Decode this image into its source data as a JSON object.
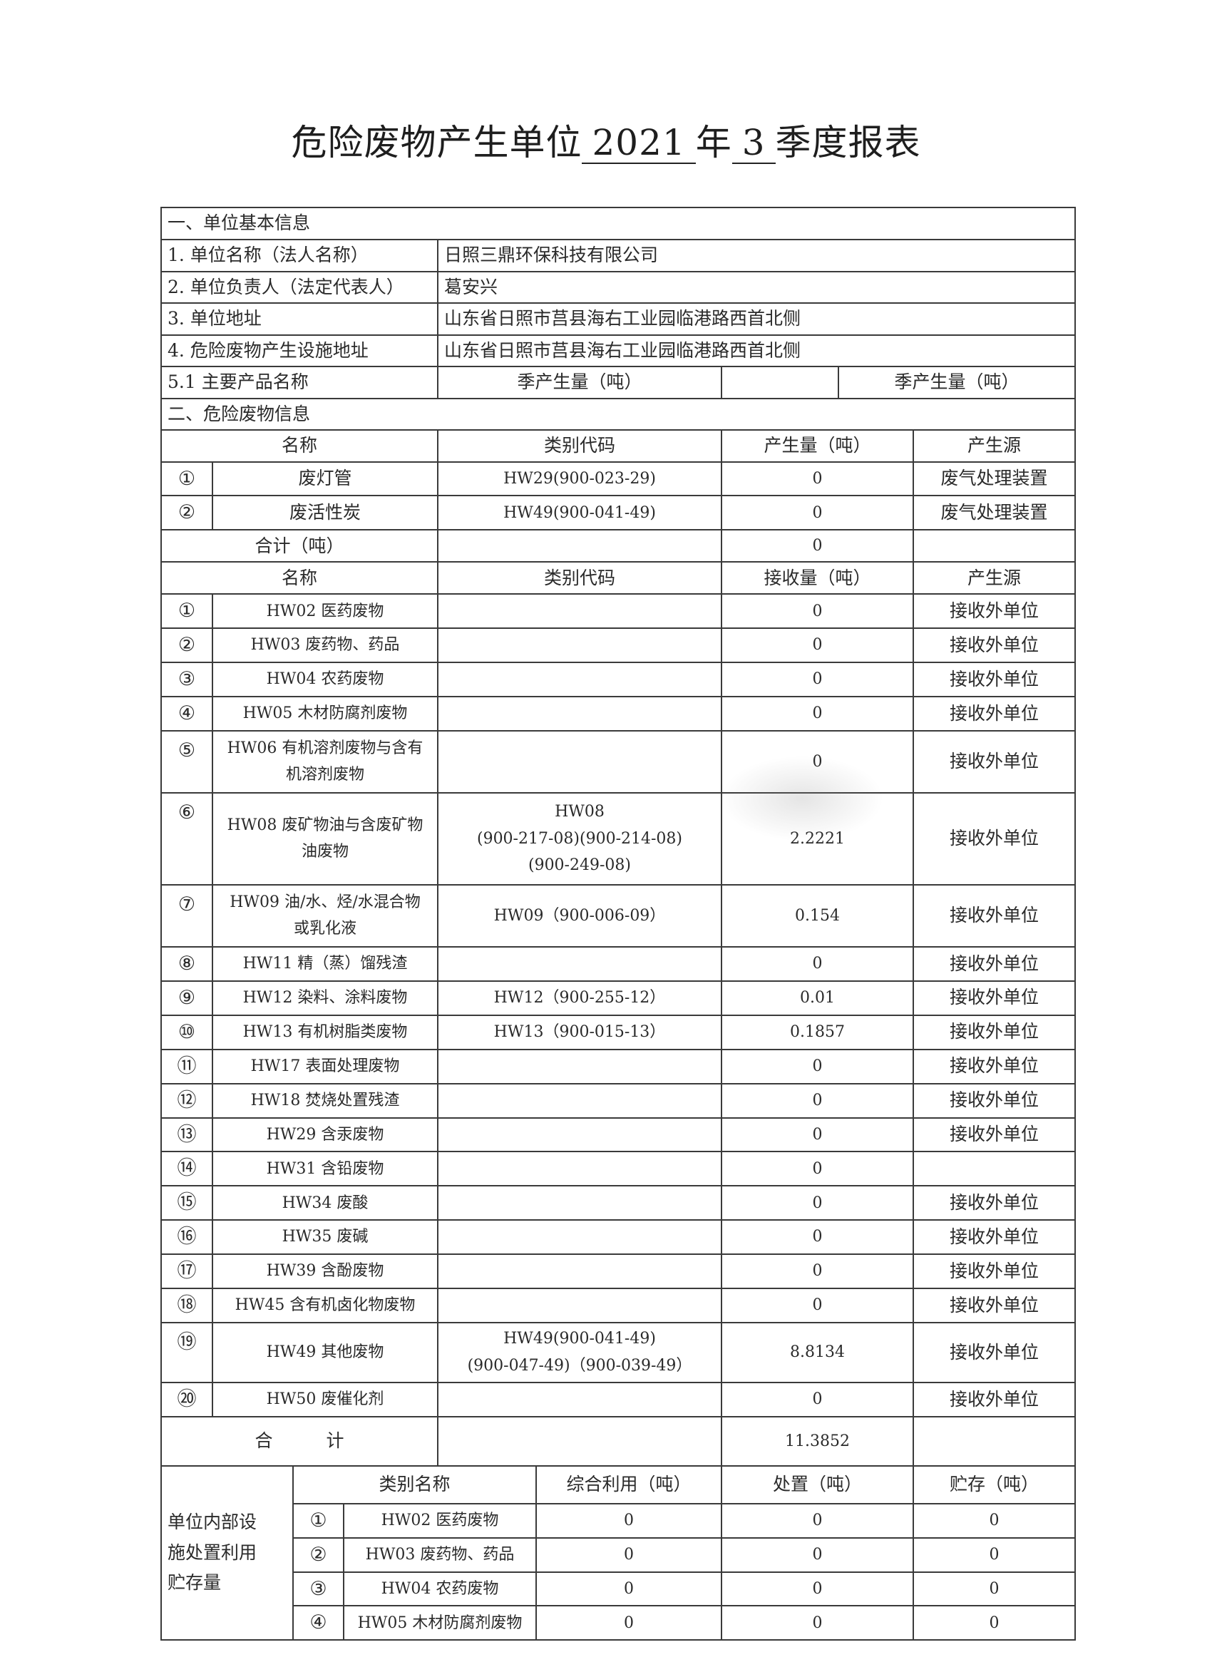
{
  "title": {
    "prefix": "危险废物产生单位",
    "year": "2021",
    "year_suffix": "年",
    "quarter": "3",
    "suffix": "季度报表"
  },
  "section1": {
    "heading": "一、单位基本信息",
    "fields": [
      {
        "label": "1. 单位名称（法人名称）",
        "value": "日照三鼎环保科技有限公司"
      },
      {
        "label": "2. 单位负责人（法定代表人）",
        "value": "葛安兴"
      },
      {
        "label": "3. 单位地址",
        "value": "山东省日照市莒县海右工业园临港路西首北侧"
      },
      {
        "label": "4. 危险废物产生设施地址",
        "value": "山东省日照市莒县海右工业园临港路西首北侧"
      }
    ],
    "product": {
      "label": "5.1 主要产品名称",
      "qty_label_1": "季产生量（吨）",
      "value_1": "",
      "qty_label_2": "季产生量（吨）"
    }
  },
  "section2": {
    "heading": "二、危险废物信息",
    "produced": {
      "headers": [
        "名称",
        "类别代码",
        "产生量（吨）",
        "产生源"
      ],
      "rows": [
        {
          "no": "①",
          "name": "废灯管",
          "code": "HW29(900-023-29)",
          "amount": "0",
          "source": "废气处理装置"
        },
        {
          "no": "②",
          "name": "废活性炭",
          "code": "HW49(900-041-49)",
          "amount": "0",
          "source": "废气处理装置"
        }
      ],
      "total_label": "合计（吨）",
      "total": "0"
    },
    "received": {
      "headers": [
        "名称",
        "类别代码",
        "接收量（吨）",
        "产生源"
      ],
      "rows": [
        {
          "no": "①",
          "name": "HW02 医药废物",
          "code": "",
          "amount": "0",
          "source": "接收外单位"
        },
        {
          "no": "②",
          "name": "HW03 废药物、药品",
          "code": "",
          "amount": "0",
          "source": "接收外单位"
        },
        {
          "no": "③",
          "name": "HW04 农药废物",
          "code": "",
          "amount": "0",
          "source": "接收外单位"
        },
        {
          "no": "④",
          "name": "HW05 木材防腐剂废物",
          "code": "",
          "amount": "0",
          "source": "接收外单位"
        },
        {
          "no": "⑤",
          "name": "HW06 有机溶剂废物与含有\n机溶剂废物",
          "code": "",
          "amount": "0",
          "source": "接收外单位"
        },
        {
          "no": "⑥",
          "name": "HW08 废矿物油与含废矿物\n油废物",
          "code": "HW08\n(900-217-08)(900-214-08)\n(900-249-08)",
          "amount": "2.2221",
          "source": "接收外单位"
        },
        {
          "no": "⑦",
          "name": "HW09 油/水、烃/水混合物\n或乳化液",
          "code": "HW09（900-006-09）",
          "amount": "0.154",
          "source": "接收外单位"
        },
        {
          "no": "⑧",
          "name": "HW11 精（蒸）馏残渣",
          "code": "",
          "amount": "0",
          "source": "接收外单位"
        },
        {
          "no": "⑨",
          "name": "HW12 染料、涂料废物",
          "code": "HW12（900-255-12）",
          "amount": "0.01",
          "source": "接收外单位"
        },
        {
          "no": "⑩",
          "name": "HW13 有机树脂类废物",
          "code": "HW13（900-015-13）",
          "amount": "0.1857",
          "source": "接收外单位"
        },
        {
          "no": "⑪",
          "name": "HW17 表面处理废物",
          "code": "",
          "amount": "0",
          "source": "接收外单位"
        },
        {
          "no": "⑫",
          "name": "HW18 焚烧处置残渣",
          "code": "",
          "amount": "0",
          "source": "接收外单位"
        },
        {
          "no": "⑬",
          "name": "HW29 含汞废物",
          "code": "",
          "amount": "0",
          "source": "接收外单位"
        },
        {
          "no": "⑭",
          "name": "HW31 含铅废物",
          "code": "",
          "amount": "0",
          "source": ""
        },
        {
          "no": "⑮",
          "name": "HW34 废酸",
          "code": "",
          "amount": "0",
          "source": "接收外单位"
        },
        {
          "no": "⑯",
          "name": "HW35 废碱",
          "code": "",
          "amount": "0",
          "source": "接收外单位"
        },
        {
          "no": "⑰",
          "name": "HW39 含酚废物",
          "code": "",
          "amount": "0",
          "source": "接收外单位"
        },
        {
          "no": "⑱",
          "name": "HW45 含有机卤化物废物",
          "code": "",
          "amount": "0",
          "source": "接收外单位"
        },
        {
          "no": "⑲",
          "name": "HW49 其他废物",
          "code": "HW49(900-041-49)\n(900-047-49)（900-039-49）",
          "amount": "8.8134",
          "source": "接收外单位"
        },
        {
          "no": "⑳",
          "name": "HW50 废催化剂",
          "code": "",
          "amount": "0",
          "source": "接收外单位"
        }
      ],
      "total_label": "合　　　计",
      "total": "11.3852"
    },
    "internal": {
      "label": "单位内部设\n施处置利用\n贮存量",
      "headers": [
        "类别名称",
        "综合利用（吨）",
        "处置（吨）",
        "贮存（吨）"
      ],
      "rows": [
        {
          "no": "①",
          "name": "HW02 医药废物",
          "utilized": "0",
          "disposed": "0",
          "stored": "0"
        },
        {
          "no": "②",
          "name": "HW03 废药物、药品",
          "utilized": "0",
          "disposed": "0",
          "stored": "0"
        },
        {
          "no": "③",
          "name": "HW04 农药废物",
          "utilized": "0",
          "disposed": "0",
          "stored": "0"
        },
        {
          "no": "④",
          "name": "HW05 木材防腐剂废物",
          "utilized": "0",
          "disposed": "0",
          "stored": "0"
        }
      ]
    }
  }
}
